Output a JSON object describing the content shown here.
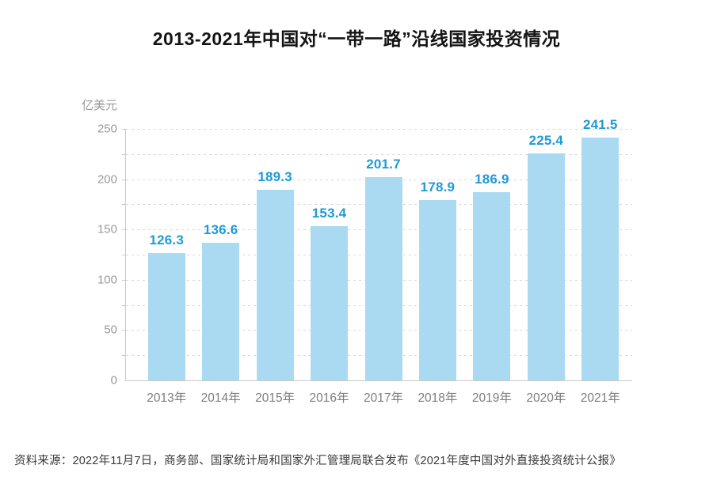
{
  "page": {
    "source_note": "资料来源：2022年11月7日，商务部、国家统计局和国家外汇管理局联合发布《2021年度中国对外直接投资统计公报》"
  },
  "chart_data": {
    "type": "bar",
    "title": "2013-2021年中国对“一带一路”沿线国家投资情况",
    "unit_label": "亿美元",
    "categories": [
      "2013年",
      "2014年",
      "2015年",
      "2016年",
      "2017年",
      "2018年",
      "2019年",
      "2020年",
      "2021年"
    ],
    "values": [
      126.3,
      136.6,
      189.3,
      153.4,
      201.7,
      178.9,
      186.9,
      225.4,
      241.5
    ],
    "value_labels": [
      "126.3",
      "136.6",
      "189.3",
      "153.4",
      "201.7",
      "178.9",
      "186.9",
      "225.4",
      "241.5"
    ],
    "ylim": [
      0,
      250
    ],
    "yticks": [
      0,
      50,
      100,
      150,
      200,
      250
    ],
    "grid_interval": 25,
    "grid_style": "dashed",
    "legend": false,
    "colors": {
      "bar_fill": "#a9daf2",
      "value_label": "#1e9ad6",
      "ytick_text": "#999999",
      "xtick_text": "#7d7d7d",
      "grid_line": "#d8d8d8",
      "axis_line": "#c9c9c9",
      "title_text": "#141414",
      "source_text": "#3a3a3a"
    }
  }
}
